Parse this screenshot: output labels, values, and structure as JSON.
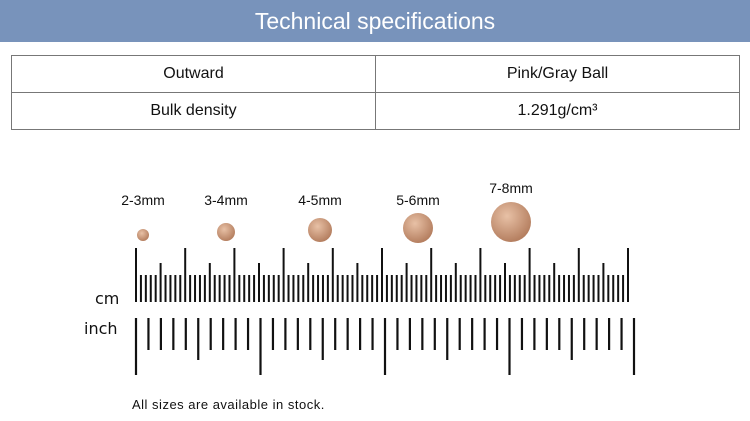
{
  "title": "Technical specifications",
  "specs": [
    {
      "label": "Outward",
      "value": "Pink/Gray Ball"
    },
    {
      "label": "Bulk density",
      "value": "1.291g/cm³"
    }
  ],
  "sizes": [
    "2-3mm",
    "3-4mm",
    "4-5mm",
    "5-6mm",
    "7-8mm"
  ],
  "ruler": {
    "cm_label": "cm",
    "inch_label": "inch"
  },
  "note": "All sizes are available in stock.",
  "colors": {
    "banner": "#7893bb",
    "ball": "#d4a184"
  }
}
